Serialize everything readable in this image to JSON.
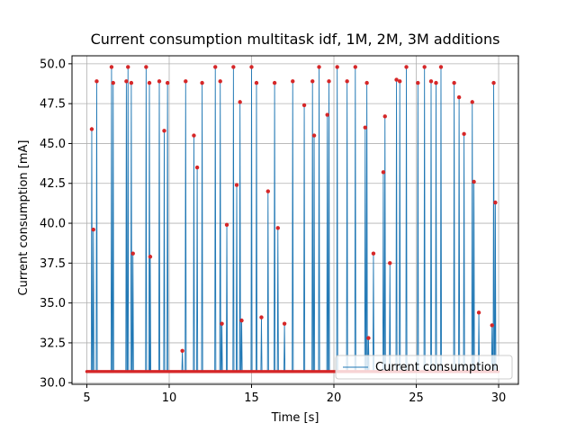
{
  "chart_data": {
    "type": "line",
    "title": "Current consumption multitask idf, 1M, 2M, 3M additions",
    "xlabel": "Time [s]",
    "ylabel": "Current consumption [mA]",
    "xlim": [
      4.1,
      31.2
    ],
    "ylim": [
      29.9,
      50.5
    ],
    "xticks": [
      5,
      10,
      15,
      20,
      25,
      30
    ],
    "xtick_labels": [
      "5",
      "10",
      "15",
      "20",
      "25",
      "30"
    ],
    "yticks": [
      30.0,
      32.5,
      35.0,
      37.5,
      40.0,
      42.5,
      45.0,
      47.5,
      50.0
    ],
    "ytick_labels": [
      "30.0",
      "32.5",
      "35.0",
      "37.5",
      "40.0",
      "42.5",
      "45.0",
      "47.5",
      "50.0"
    ],
    "grid": true,
    "legend_position": "lower-right",
    "baseline": 30.7,
    "x_start": 5.0,
    "x_end": 30.0,
    "series": [
      {
        "name": "Current consumption",
        "color": "#1f77b4",
        "marker_color": "#d62728",
        "spikes": [
          [
            5.3,
            45.9
          ],
          [
            5.4,
            39.6
          ],
          [
            5.6,
            48.9
          ],
          [
            6.5,
            49.8
          ],
          [
            6.6,
            48.8
          ],
          [
            7.4,
            48.9
          ],
          [
            7.5,
            49.8
          ],
          [
            7.7,
            48.8
          ],
          [
            7.8,
            38.1
          ],
          [
            8.6,
            49.8
          ],
          [
            8.8,
            48.8
          ],
          [
            8.85,
            37.9
          ],
          [
            9.4,
            48.9
          ],
          [
            9.7,
            45.8
          ],
          [
            9.9,
            48.8
          ],
          [
            10.8,
            32.0
          ],
          [
            11.0,
            48.9
          ],
          [
            11.5,
            45.5
          ],
          [
            11.7,
            43.5
          ],
          [
            12.0,
            48.8
          ],
          [
            12.8,
            49.8
          ],
          [
            13.1,
            48.9
          ],
          [
            13.2,
            33.7
          ],
          [
            13.5,
            39.9
          ],
          [
            13.9,
            49.8
          ],
          [
            14.1,
            42.4
          ],
          [
            14.3,
            47.6
          ],
          [
            14.4,
            33.9
          ],
          [
            15.0,
            49.8
          ],
          [
            15.3,
            48.8
          ],
          [
            15.6,
            34.1
          ],
          [
            16.0,
            42.0
          ],
          [
            16.4,
            48.8
          ],
          [
            16.6,
            39.7
          ],
          [
            17.0,
            33.7
          ],
          [
            17.5,
            48.9
          ],
          [
            18.2,
            47.4
          ],
          [
            18.7,
            48.9
          ],
          [
            18.8,
            45.5
          ],
          [
            19.1,
            49.8
          ],
          [
            19.6,
            46.8
          ],
          [
            19.7,
            48.9
          ],
          [
            20.2,
            49.8
          ],
          [
            20.8,
            48.9
          ],
          [
            21.3,
            49.8
          ],
          [
            21.9,
            46.0
          ],
          [
            22.0,
            48.8
          ],
          [
            22.1,
            32.8
          ],
          [
            22.4,
            38.1
          ],
          [
            23.0,
            43.2
          ],
          [
            23.1,
            46.7
          ],
          [
            23.4,
            37.5
          ],
          [
            23.8,
            49.0
          ],
          [
            24.0,
            48.9
          ],
          [
            24.4,
            49.8
          ],
          [
            25.1,
            48.8
          ],
          [
            25.5,
            49.8
          ],
          [
            25.9,
            48.9
          ],
          [
            26.2,
            48.8
          ],
          [
            26.5,
            49.8
          ],
          [
            27.3,
            48.8
          ],
          [
            27.6,
            47.9
          ],
          [
            27.9,
            45.6
          ],
          [
            28.4,
            47.6
          ],
          [
            28.5,
            42.6
          ],
          [
            28.8,
            34.4
          ],
          [
            29.6,
            33.6
          ],
          [
            29.7,
            48.8
          ],
          [
            29.8,
            41.3
          ]
        ]
      }
    ]
  }
}
